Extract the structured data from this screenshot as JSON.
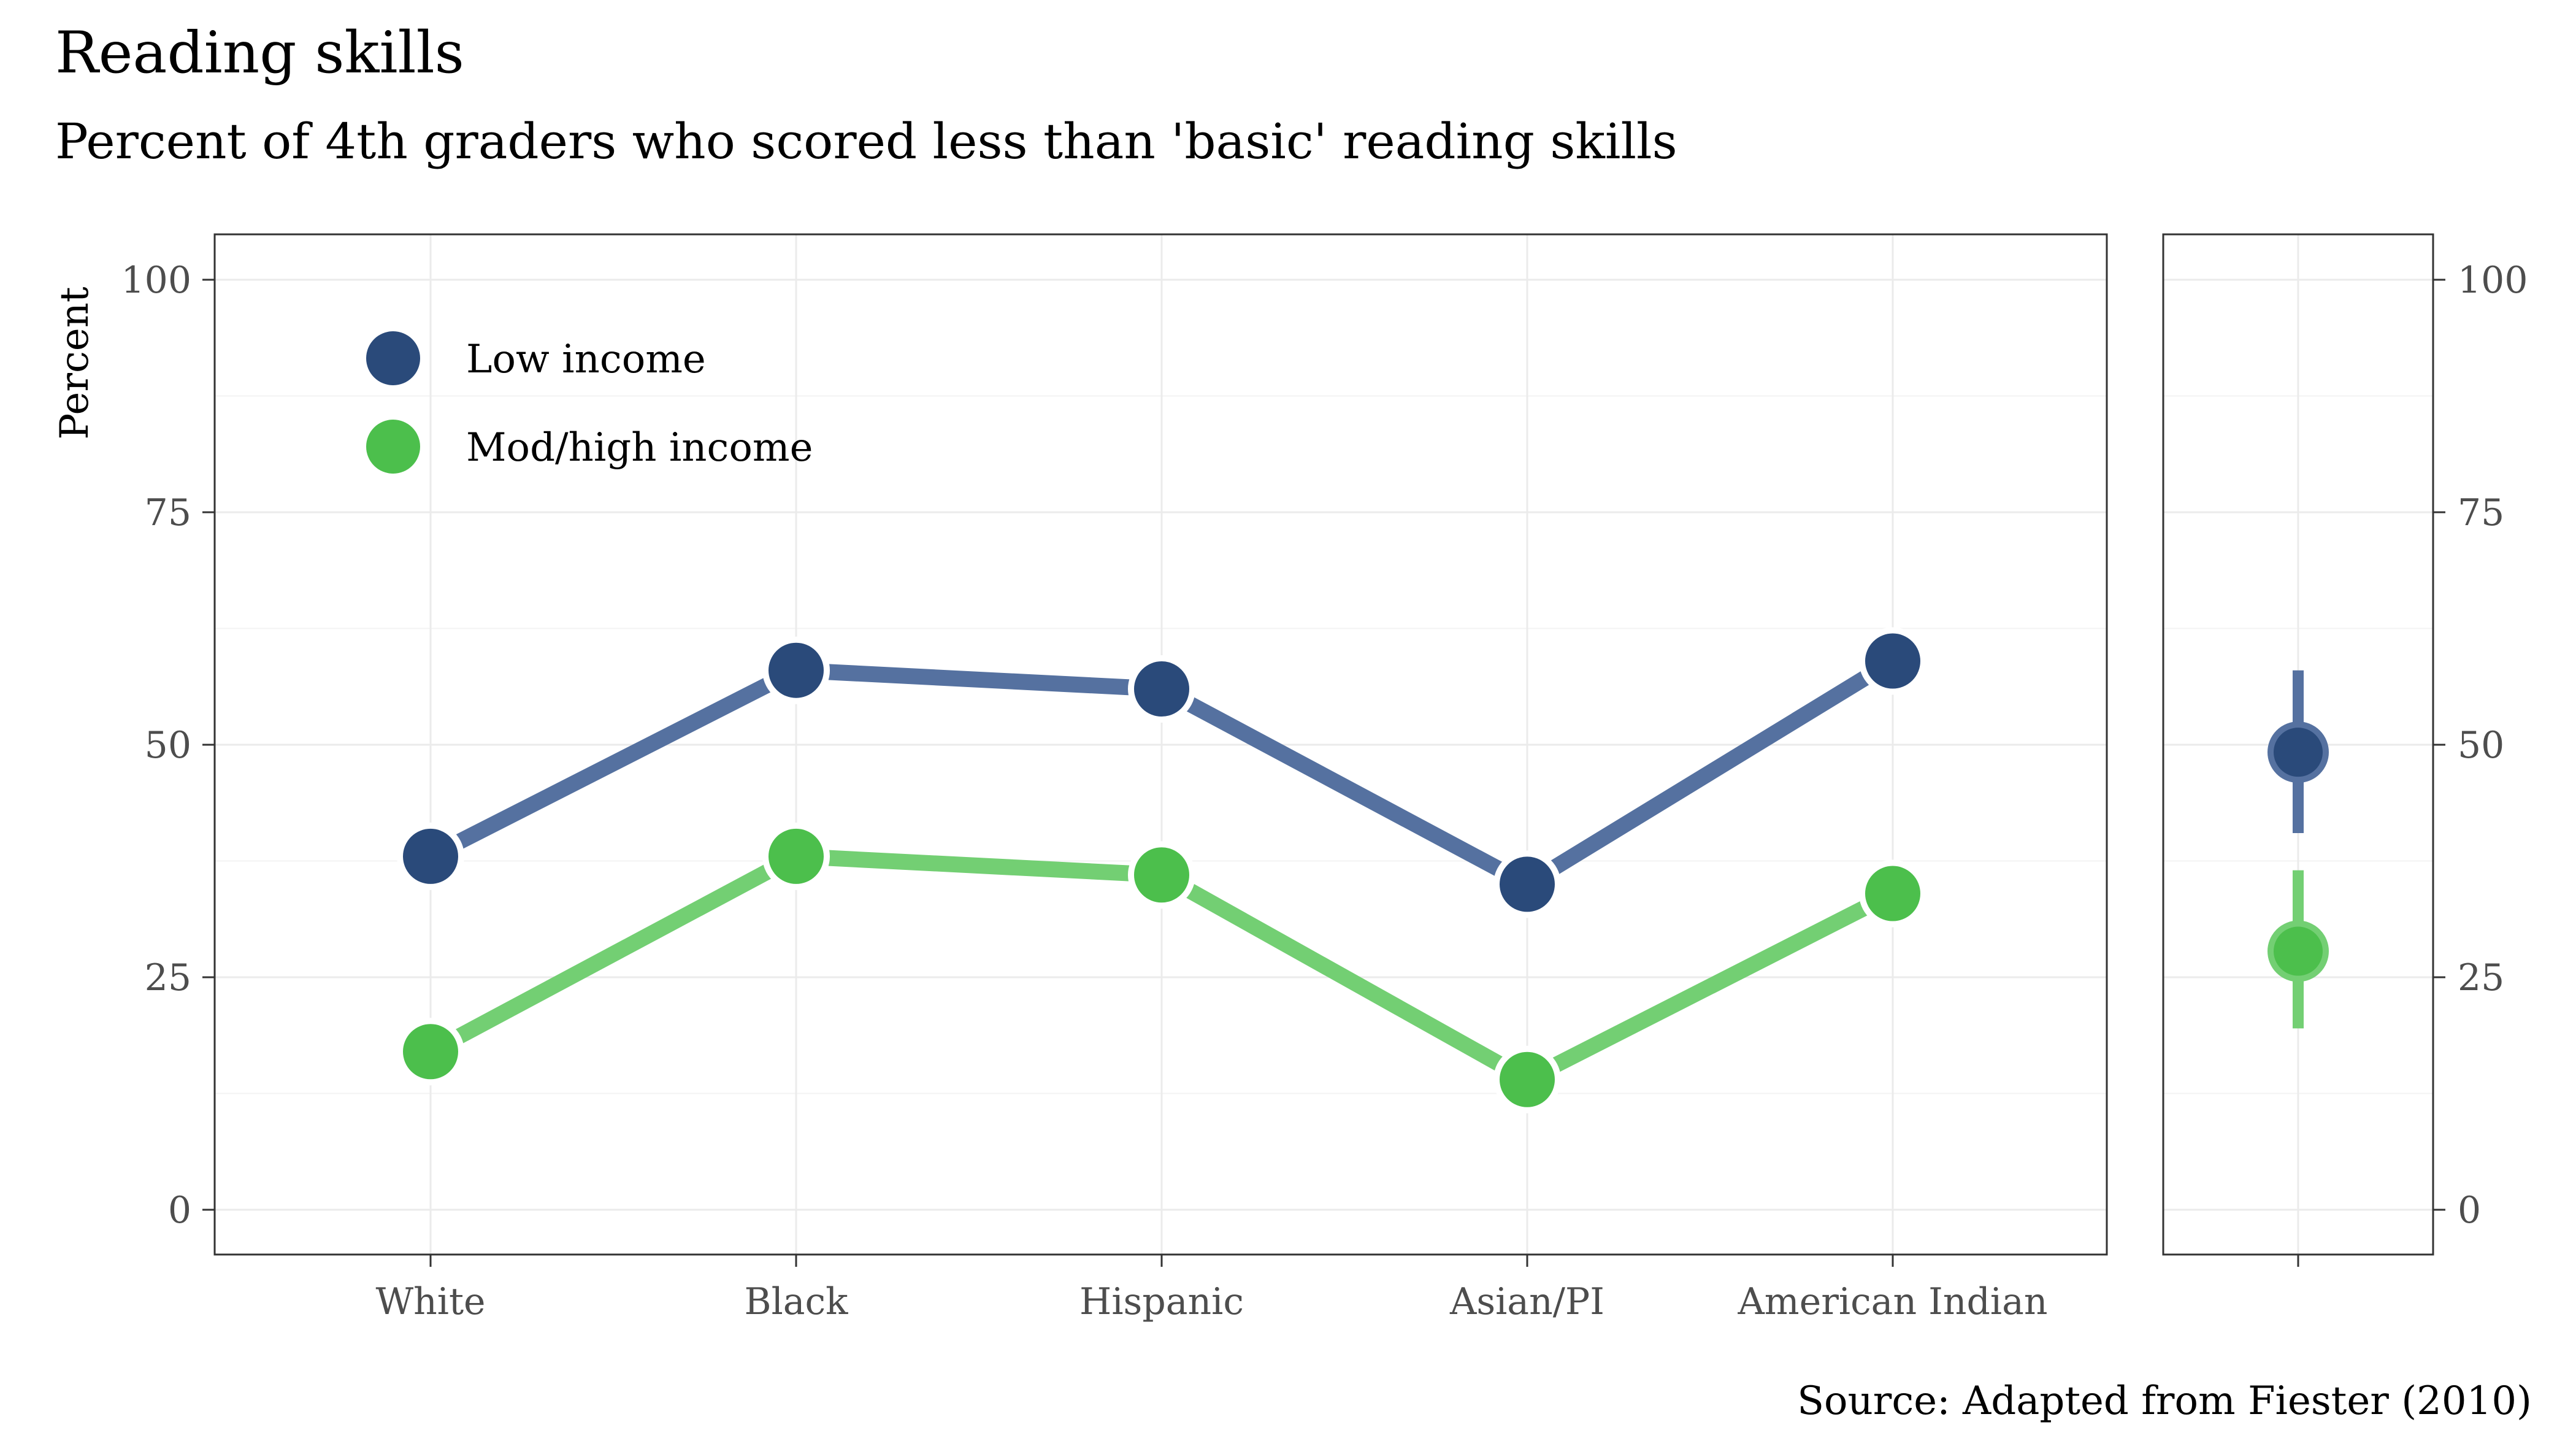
{
  "chart_data": {
    "type": "line",
    "title": "Reading skills",
    "subtitle": "Percent of 4th graders who scored less than 'basic' reading skills",
    "ylabel": "Percent",
    "caption": "Source: Adapted from Fiester (2010)",
    "categories": [
      "White",
      "Black",
      "Hispanic",
      "Asian/PI",
      "American Indian"
    ],
    "ylim": [
      0,
      100
    ],
    "yticks": [
      0,
      25,
      50,
      75,
      100
    ],
    "grid": true,
    "legend_position": "top-left inside",
    "series": [
      {
        "name": "Low income",
        "color": "#2a4a7a",
        "line_color": "#5571a0",
        "values": [
          38,
          58,
          56,
          35,
          59
        ]
      },
      {
        "name": "Mod/high income",
        "color": "#4cbf4c",
        "line_color": "#73cf73",
        "values": [
          17,
          38,
          36,
          14,
          34
        ]
      }
    ],
    "summary_panel": {
      "description": "mean with range per income group",
      "points": [
        {
          "series": "Low income",
          "mean": 49.2,
          "low": 40.5,
          "high": 58
        },
        {
          "series": "Mod/high income",
          "mean": 27.8,
          "low": 19.5,
          "high": 36.5
        }
      ]
    }
  }
}
